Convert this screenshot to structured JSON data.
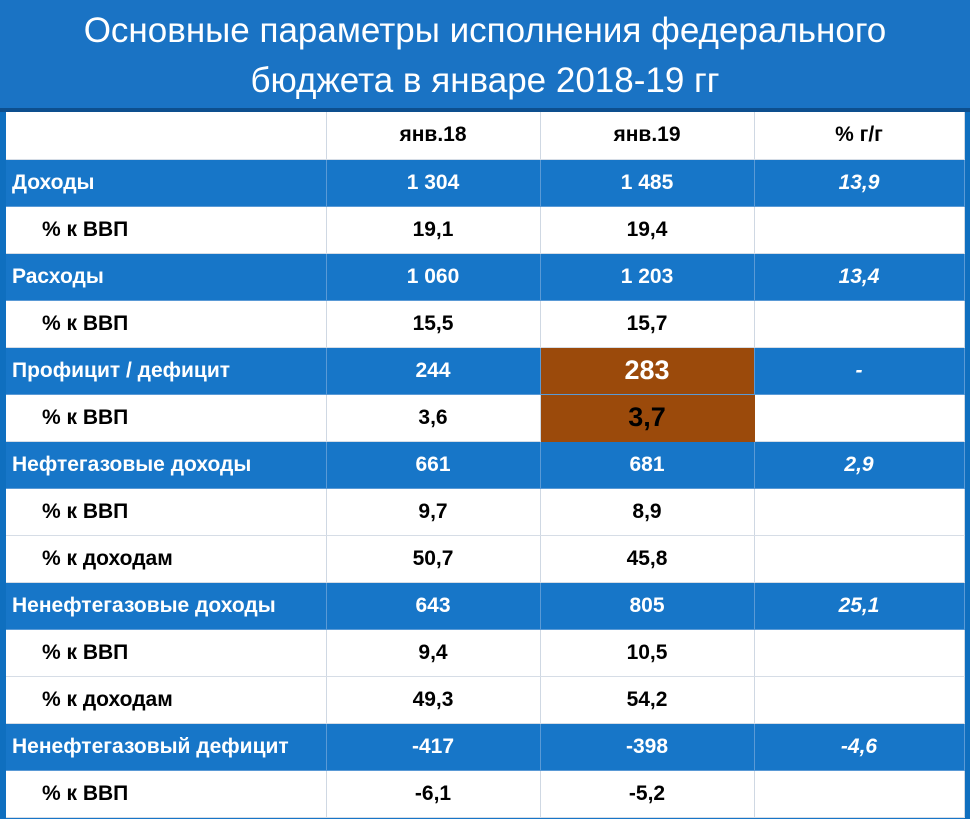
{
  "title": {
    "line1": "Основные параметры исполнения федерального",
    "line2": "бюджета в январе 2018-19 гг"
  },
  "header": {
    "col0": "",
    "col1": "янв.18",
    "col2": "янв.19",
    "col3": "% г/г"
  },
  "rows": [
    {
      "label": "Доходы",
      "v18": "1 304",
      "v19": "1 485",
      "yy": "13,9"
    },
    {
      "label": "% к ВВП",
      "v18": "19,1",
      "v19": "19,4",
      "yy": ""
    },
    {
      "label": "Расходы",
      "v18": "1 060",
      "v19": "1 203",
      "yy": "13,4"
    },
    {
      "label": "% к ВВП",
      "v18": "15,5",
      "v19": "15,7",
      "yy": ""
    },
    {
      "label": "Профицит / дефицит",
      "v18": "244",
      "v19": "283",
      "yy": "-"
    },
    {
      "label": "% к ВВП",
      "v18": "3,6",
      "v19": "3,7",
      "yy": ""
    },
    {
      "label": "Нефтегазовые доходы",
      "v18": "661",
      "v19": "681",
      "yy": "2,9"
    },
    {
      "label": "% к ВВП",
      "v18": "9,7",
      "v19": "8,9",
      "yy": ""
    },
    {
      "label": "% к доходам",
      "v18": "50,7",
      "v19": "45,8",
      "yy": ""
    },
    {
      "label": "Ненефтегазовые доходы",
      "v18": "643",
      "v19": "805",
      "yy": "25,1"
    },
    {
      "label": "% к ВВП",
      "v18": "9,4",
      "v19": "10,5",
      "yy": ""
    },
    {
      "label": "% к доходам",
      "v18": "49,3",
      "v19": "54,2",
      "yy": ""
    },
    {
      "label": "Ненефтегазовый дефицит",
      "v18": "-417",
      "v19": "-398",
      "yy": "-4,6"
    },
    {
      "label": "% к ВВП",
      "v18": "-6,1",
      "v19": "-5,2",
      "yy": ""
    }
  ],
  "colors": {
    "background": "#1776c8",
    "highlight": "#9b4a0b",
    "text_light": "#ffffff",
    "text_dark": "#000000"
  }
}
